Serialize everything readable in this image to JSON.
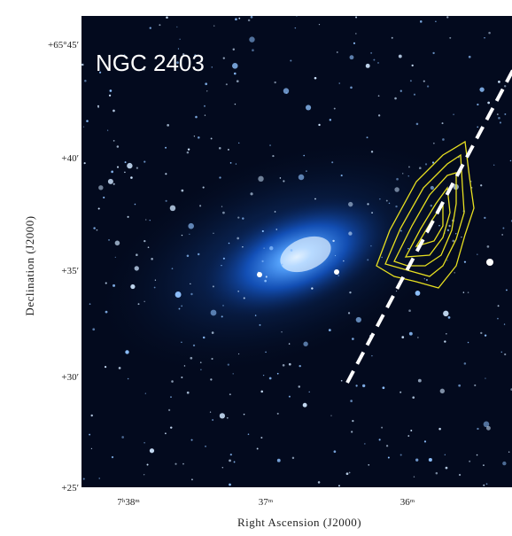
{
  "image": {
    "label": "NGC 2403"
  },
  "axes": {
    "x_label": "Right Ascension (J2000)",
    "y_label": "Declination (J2000)",
    "x_ticks": [
      "7ʰ38ᵐ",
      "37ᵐ",
      "36ᵐ"
    ],
    "y_ticks": [
      "+65°45′",
      "+40′",
      "+35′",
      "+30′",
      "+25′"
    ]
  }
}
